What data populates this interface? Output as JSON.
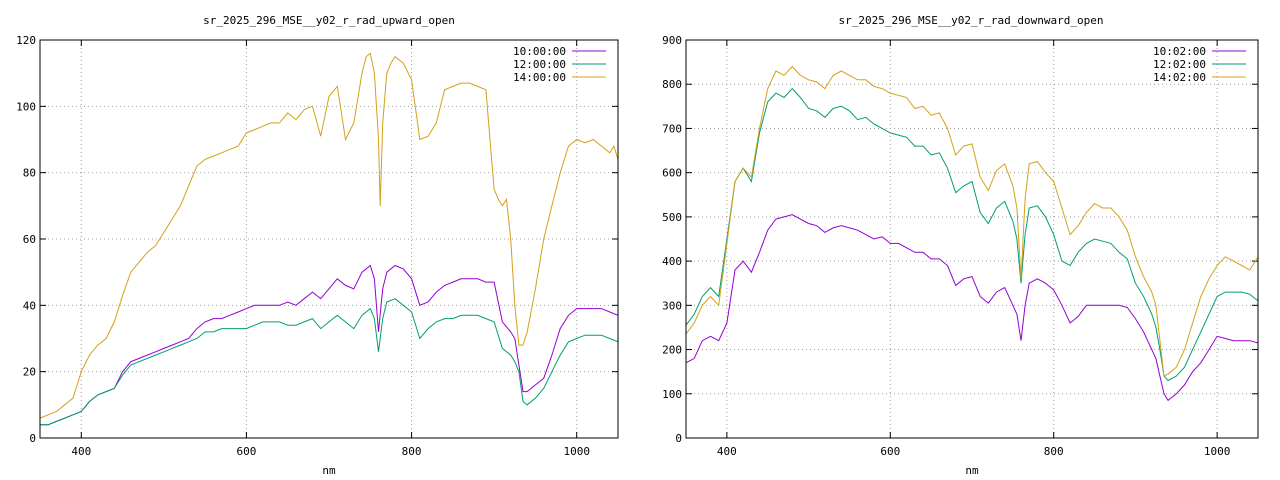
{
  "chart_data": [
    {
      "type": "line",
      "title": "sr_2025_296_MSE__y02_r_rad_upward_open",
      "xlabel": "nm",
      "ylabel": "",
      "xlim": [
        350,
        1050
      ],
      "ylim": [
        0,
        120
      ],
      "xticks": [
        400,
        600,
        800,
        1000
      ],
      "yticks": [
        0,
        20,
        40,
        60,
        80,
        100,
        120
      ],
      "grid": true,
      "legend_position": "top-right",
      "series": [
        {
          "name": "10:00:00",
          "color": "#9400d3",
          "x": [
            350,
            360,
            370,
            380,
            390,
            400,
            410,
            420,
            430,
            440,
            450,
            460,
            470,
            480,
            490,
            500,
            510,
            520,
            530,
            540,
            550,
            560,
            570,
            580,
            590,
            600,
            610,
            620,
            630,
            640,
            650,
            660,
            670,
            680,
            690,
            700,
            710,
            720,
            730,
            740,
            750,
            755,
            760,
            765,
            770,
            780,
            790,
            800,
            810,
            820,
            830,
            840,
            850,
            860,
            870,
            880,
            890,
            900,
            910,
            920,
            925,
            930,
            935,
            940,
            950,
            960,
            970,
            980,
            990,
            1000,
            1010,
            1020,
            1030,
            1040,
            1050
          ],
          "y": [
            4,
            4,
            5,
            6,
            7,
            8,
            11,
            13,
            14,
            15,
            20,
            23,
            24,
            25,
            26,
            27,
            28,
            29,
            30,
            33,
            35,
            36,
            36,
            37,
            38,
            39,
            40,
            40,
            40,
            40,
            41,
            40,
            42,
            44,
            42,
            45,
            48,
            46,
            45,
            50,
            52,
            48,
            32,
            45,
            50,
            52,
            51,
            48,
            40,
            41,
            44,
            46,
            47,
            48,
            48,
            48,
            47,
            47,
            35,
            32,
            30,
            22,
            14,
            14,
            16,
            18,
            25,
            33,
            37,
            39,
            39,
            39,
            39,
            38,
            37
          ]
        },
        {
          "name": "12:00:00",
          "color": "#009e73",
          "x": [
            350,
            360,
            370,
            380,
            390,
            400,
            410,
            420,
            430,
            440,
            450,
            460,
            470,
            480,
            490,
            500,
            510,
            520,
            530,
            540,
            550,
            560,
            570,
            580,
            590,
            600,
            610,
            620,
            630,
            640,
            650,
            660,
            670,
            680,
            690,
            700,
            710,
            720,
            730,
            740,
            750,
            755,
            760,
            765,
            770,
            780,
            790,
            800,
            810,
            820,
            830,
            840,
            850,
            860,
            870,
            880,
            890,
            900,
            910,
            920,
            925,
            930,
            935,
            940,
            950,
            960,
            970,
            980,
            990,
            1000,
            1010,
            1020,
            1030,
            1040,
            1050
          ],
          "y": [
            4,
            4,
            5,
            6,
            7,
            8,
            11,
            13,
            14,
            15,
            19,
            22,
            23,
            24,
            25,
            26,
            27,
            28,
            29,
            30,
            32,
            32,
            33,
            33,
            33,
            33,
            34,
            35,
            35,
            35,
            34,
            34,
            35,
            36,
            33,
            35,
            37,
            35,
            33,
            37,
            39,
            36,
            26,
            36,
            41,
            42,
            40,
            38,
            30,
            33,
            35,
            36,
            36,
            37,
            37,
            37,
            36,
            35,
            27,
            25,
            23,
            20,
            11,
            10,
            12,
            15,
            20,
            25,
            29,
            30,
            31,
            31,
            31,
            30,
            29
          ]
        },
        {
          "name": "14:00:00",
          "color": "#d4a017",
          "x": [
            350,
            360,
            370,
            380,
            390,
            400,
            410,
            420,
            430,
            440,
            450,
            460,
            470,
            480,
            490,
            500,
            510,
            520,
            530,
            540,
            550,
            560,
            570,
            580,
            590,
            600,
            610,
            620,
            630,
            640,
            650,
            660,
            670,
            680,
            690,
            700,
            710,
            720,
            730,
            740,
            745,
            750,
            755,
            760,
            762,
            765,
            770,
            775,
            780,
            790,
            800,
            810,
            820,
            830,
            840,
            850,
            860,
            870,
            880,
            890,
            900,
            905,
            910,
            915,
            920,
            925,
            930,
            935,
            940,
            950,
            960,
            970,
            980,
            990,
            1000,
            1010,
            1020,
            1030,
            1040,
            1045,
            1050
          ],
          "y": [
            6,
            7,
            8,
            10,
            12,
            20,
            25,
            28,
            30,
            35,
            43,
            50,
            53,
            56,
            58,
            62,
            66,
            70,
            76,
            82,
            84,
            85,
            86,
            87,
            88,
            92,
            93,
            94,
            95,
            95,
            98,
            96,
            99,
            100,
            91,
            103,
            106,
            90,
            95,
            110,
            115,
            116,
            110,
            90,
            70,
            95,
            110,
            113,
            115,
            113,
            108,
            90,
            91,
            95,
            105,
            106,
            107,
            107,
            106,
            105,
            75,
            72,
            70,
            72,
            60,
            40,
            28,
            28,
            32,
            45,
            60,
            70,
            80,
            88,
            90,
            89,
            90,
            88,
            86,
            88,
            84
          ]
        }
      ]
    },
    {
      "type": "line",
      "title": "sr_2025_296_MSE__y02_r_rad_downward_open",
      "xlabel": "nm",
      "ylabel": "",
      "xlim": [
        350,
        1050
      ],
      "ylim": [
        0,
        900
      ],
      "xticks": [
        400,
        600,
        800,
        1000
      ],
      "yticks": [
        0,
        100,
        200,
        300,
        400,
        500,
        600,
        700,
        800,
        900
      ],
      "grid": true,
      "legend_position": "top-right",
      "series": [
        {
          "name": "10:02:00",
          "color": "#9400d3",
          "x": [
            350,
            360,
            370,
            380,
            390,
            400,
            410,
            420,
            430,
            440,
            450,
            460,
            470,
            480,
            490,
            500,
            510,
            520,
            530,
            540,
            550,
            560,
            570,
            580,
            590,
            600,
            610,
            620,
            630,
            640,
            650,
            660,
            670,
            680,
            690,
            700,
            710,
            720,
            730,
            740,
            750,
            755,
            760,
            765,
            770,
            780,
            790,
            800,
            810,
            820,
            830,
            840,
            850,
            860,
            870,
            880,
            890,
            900,
            910,
            920,
            925,
            930,
            935,
            940,
            950,
            960,
            970,
            980,
            990,
            1000,
            1010,
            1020,
            1030,
            1040,
            1050
          ],
          "y": [
            170,
            180,
            220,
            230,
            220,
            260,
            380,
            400,
            375,
            420,
            470,
            495,
            500,
            505,
            495,
            485,
            480,
            465,
            475,
            480,
            475,
            470,
            460,
            450,
            455,
            440,
            440,
            430,
            420,
            420,
            405,
            405,
            390,
            345,
            360,
            365,
            320,
            305,
            330,
            340,
            300,
            280,
            220,
            300,
            350,
            360,
            350,
            335,
            300,
            260,
            275,
            300,
            300,
            300,
            300,
            300,
            295,
            270,
            240,
            200,
            180,
            140,
            100,
            85,
            100,
            120,
            150,
            170,
            200,
            230,
            225,
            220,
            220,
            220,
            215
          ]
        },
        {
          "name": "12:02:00",
          "color": "#009e73",
          "x": [
            350,
            360,
            370,
            380,
            390,
            400,
            410,
            420,
            430,
            440,
            450,
            460,
            470,
            480,
            490,
            500,
            510,
            520,
            530,
            540,
            550,
            560,
            570,
            580,
            590,
            600,
            610,
            620,
            630,
            640,
            650,
            660,
            670,
            680,
            690,
            700,
            710,
            720,
            730,
            740,
            750,
            755,
            760,
            765,
            770,
            780,
            790,
            800,
            810,
            820,
            830,
            840,
            850,
            860,
            870,
            880,
            890,
            900,
            910,
            920,
            925,
            930,
            935,
            940,
            950,
            960,
            970,
            980,
            990,
            1000,
            1010,
            1020,
            1030,
            1040,
            1050
          ],
          "y": [
            255,
            280,
            320,
            340,
            320,
            450,
            580,
            610,
            580,
            690,
            760,
            780,
            770,
            790,
            770,
            745,
            740,
            725,
            745,
            750,
            740,
            720,
            725,
            710,
            700,
            690,
            685,
            680,
            660,
            660,
            640,
            645,
            610,
            555,
            570,
            580,
            510,
            485,
            520,
            535,
            490,
            450,
            350,
            460,
            520,
            525,
            500,
            460,
            400,
            390,
            420,
            440,
            450,
            445,
            440,
            420,
            405,
            350,
            320,
            280,
            250,
            200,
            140,
            130,
            140,
            160,
            200,
            240,
            280,
            320,
            330,
            330,
            330,
            325,
            310
          ]
        },
        {
          "name": "14:02:00",
          "color": "#d4a017",
          "x": [
            350,
            360,
            370,
            380,
            390,
            400,
            410,
            420,
            430,
            440,
            450,
            460,
            470,
            480,
            490,
            500,
            510,
            520,
            530,
            540,
            550,
            560,
            570,
            580,
            590,
            600,
            610,
            620,
            630,
            640,
            650,
            660,
            670,
            680,
            690,
            700,
            710,
            720,
            730,
            740,
            750,
            755,
            760,
            765,
            770,
            780,
            790,
            800,
            810,
            820,
            830,
            840,
            850,
            860,
            870,
            880,
            890,
            900,
            910,
            920,
            925,
            930,
            935,
            940,
            950,
            960,
            970,
            980,
            990,
            1000,
            1010,
            1020,
            1030,
            1040,
            1050
          ],
          "y": [
            235,
            260,
            300,
            320,
            300,
            440,
            580,
            610,
            590,
            700,
            790,
            830,
            820,
            840,
            820,
            810,
            805,
            790,
            820,
            830,
            820,
            810,
            810,
            795,
            790,
            780,
            775,
            770,
            745,
            750,
            730,
            735,
            700,
            640,
            660,
            665,
            590,
            560,
            605,
            620,
            570,
            520,
            360,
            540,
            620,
            625,
            600,
            580,
            520,
            460,
            480,
            510,
            530,
            520,
            520,
            500,
            470,
            410,
            365,
            330,
            300,
            220,
            140,
            145,
            160,
            200,
            260,
            320,
            360,
            390,
            410,
            400,
            390,
            380,
            410
          ]
        }
      ]
    }
  ]
}
